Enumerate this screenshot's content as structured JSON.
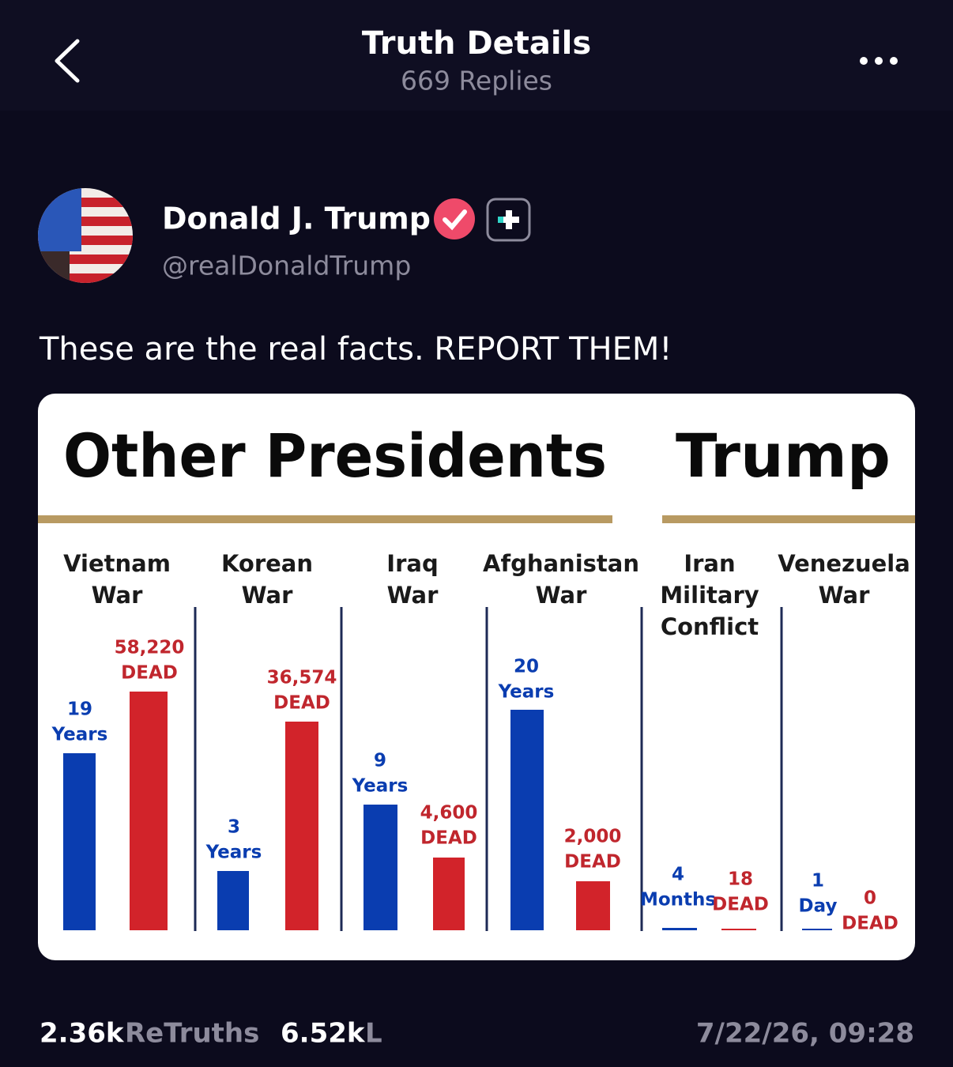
{
  "header": {
    "title": "Truth Details",
    "subtitle": "669 Replies"
  },
  "author": {
    "name": "Donald J. Trump",
    "handle": "@realDonaldTrump"
  },
  "post": {
    "text": "These are the real facts. REPORT THEM!",
    "image": {
      "left_heading": "Other Presidents",
      "right_heading": "Trump",
      "groups": [
        {
          "label": [
            "Vietnam",
            "War"
          ],
          "duration": [
            "19",
            "Years"
          ],
          "deaths": [
            "58,220",
            "DEAD"
          ]
        },
        {
          "label": [
            "Korean",
            "War"
          ],
          "duration": [
            "3",
            "Years"
          ],
          "deaths": [
            "36,574",
            "DEAD"
          ]
        },
        {
          "label": [
            "Iraq",
            "War"
          ],
          "duration": [
            "9",
            "Years"
          ],
          "deaths": [
            "4,600",
            "DEAD"
          ]
        },
        {
          "label": [
            "Afghanistan",
            "War"
          ],
          "duration": [
            "20",
            "Years"
          ],
          "deaths": [
            "2,000",
            "DEAD"
          ]
        },
        {
          "label": [
            "Iran",
            "Military",
            "Conflict"
          ],
          "duration": [
            "4",
            "Months"
          ],
          "deaths": [
            "18",
            "DEAD"
          ]
        },
        {
          "label": [
            "Venezuela",
            "War"
          ],
          "duration": [
            "1",
            "Day"
          ],
          "deaths": [
            "0",
            "DEAD"
          ]
        }
      ]
    }
  },
  "stats": {
    "retruths_count": "2.36k",
    "retruths_label": "ReTruths",
    "likes_count": "6.52k",
    "likes_label": "L",
    "timestamp": "7/22/26, 09:28"
  }
}
